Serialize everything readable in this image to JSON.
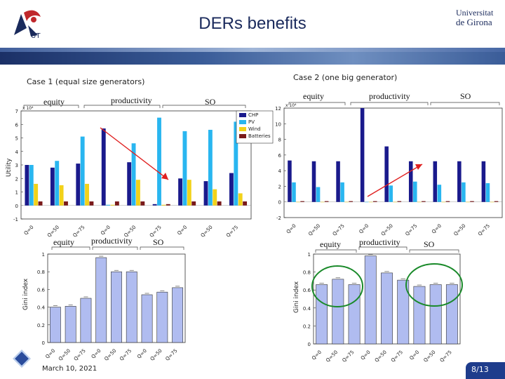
{
  "slide": {
    "title": "DERs benefits",
    "logo_right": [
      "Universitat",
      "de Girona"
    ],
    "logo_left_text": "UT",
    "date": "March 10, 2021",
    "page": "8/13"
  },
  "labels": {
    "case1": "Case 1 (equal size generators)",
    "case2": "Case 2 (one big generator)",
    "equity": "equity",
    "productivity": "productivity",
    "so": "SO",
    "utility": "Utility",
    "gini": "Gini index"
  },
  "chart_data": [
    {
      "type": "bar",
      "name_ref": "case1-utility",
      "ylabel": "Utility",
      "exponent_label": "x 10⁴",
      "ylim": [
        -1,
        7
      ],
      "yticks": [
        -1,
        0,
        1,
        2,
        3,
        4,
        5,
        6,
        7
      ],
      "categories": [
        "Q=0",
        "Q=50",
        "Q=75",
        "Q=0",
        "Q=50",
        "Q=75",
        "Q=0",
        "Q=50",
        "Q=75"
      ],
      "series": [
        {
          "name": "CHP",
          "color": "#1a1a8c",
          "values": [
            3.0,
            2.8,
            3.1,
            5.7,
            3.2,
            0.1,
            2.0,
            1.8,
            2.4
          ]
        },
        {
          "name": "PV",
          "color": "#29b6f0",
          "values": [
            3.0,
            3.3,
            5.1,
            0.05,
            4.6,
            6.5,
            5.5,
            5.6,
            6.2
          ]
        },
        {
          "name": "Wind",
          "color": "#f2d21a",
          "values": [
            1.6,
            1.5,
            1.6,
            0.05,
            1.9,
            0.05,
            1.9,
            1.2,
            0.9
          ]
        },
        {
          "name": "Batteries",
          "color": "#7a1a1a",
          "values": [
            0.3,
            0.3,
            0.3,
            0.3,
            0.3,
            0.1,
            0.3,
            0.3,
            0.3
          ]
        }
      ]
    },
    {
      "type": "bar",
      "name_ref": "case2-utility",
      "exponent_label": "x 10⁴",
      "ylim": [
        -2,
        12
      ],
      "yticks": [
        -2,
        0,
        2,
        4,
        6,
        8,
        10,
        12
      ],
      "categories": [
        "Q=0",
        "Q=50",
        "Q=75",
        "Q=0",
        "Q=50",
        "Q=75",
        "Q=0",
        "Q=50",
        "Q=75"
      ],
      "series": [
        {
          "name": "CHP",
          "color": "#1a1a8c",
          "values": [
            5.3,
            5.2,
            5.2,
            12.0,
            7.1,
            5.2,
            5.2,
            5.2,
            5.2
          ]
        },
        {
          "name": "PV",
          "color": "#29b6f0",
          "values": [
            2.5,
            1.9,
            2.5,
            0.0,
            2.1,
            2.6,
            2.2,
            2.5,
            2.4
          ]
        },
        {
          "name": "Wind",
          "color": "#f2d21a",
          "values": [
            0.0,
            0.0,
            0.0,
            0.0,
            0.0,
            0.0,
            0.0,
            0.0,
            0.0
          ]
        },
        {
          "name": "Batteries",
          "color": "#7a1a1a",
          "values": [
            0.1,
            0.1,
            0.1,
            0.1,
            0.1,
            0.1,
            0.1,
            0.1,
            0.1
          ]
        }
      ]
    },
    {
      "type": "bar",
      "name_ref": "case1-gini",
      "ylabel": "Gini index",
      "ylim": [
        0,
        1
      ],
      "yticks": [
        0,
        0.2,
        0.4,
        0.6,
        0.8,
        1
      ],
      "categories": [
        "Q=0",
        "Q=50",
        "Q=75",
        "Q=0",
        "Q=50",
        "Q=75",
        "Q=0",
        "Q=50",
        "Q=75"
      ],
      "values": [
        0.4,
        0.41,
        0.5,
        0.96,
        0.8,
        0.8,
        0.54,
        0.57,
        0.62
      ]
    },
    {
      "type": "bar",
      "name_ref": "case2-gini",
      "ylabel": "Gini index",
      "ylim": [
        0,
        1
      ],
      "yticks": [
        0,
        0.2,
        0.4,
        0.6,
        0.8,
        1
      ],
      "categories": [
        "Q=0",
        "Q=50",
        "Q=75",
        "Q=0",
        "Q=50",
        "Q=75",
        "Q=0",
        "Q=50",
        "Q=75"
      ],
      "values": [
        0.66,
        0.72,
        0.66,
        0.98,
        0.79,
        0.71,
        0.64,
        0.66,
        0.66
      ]
    }
  ]
}
